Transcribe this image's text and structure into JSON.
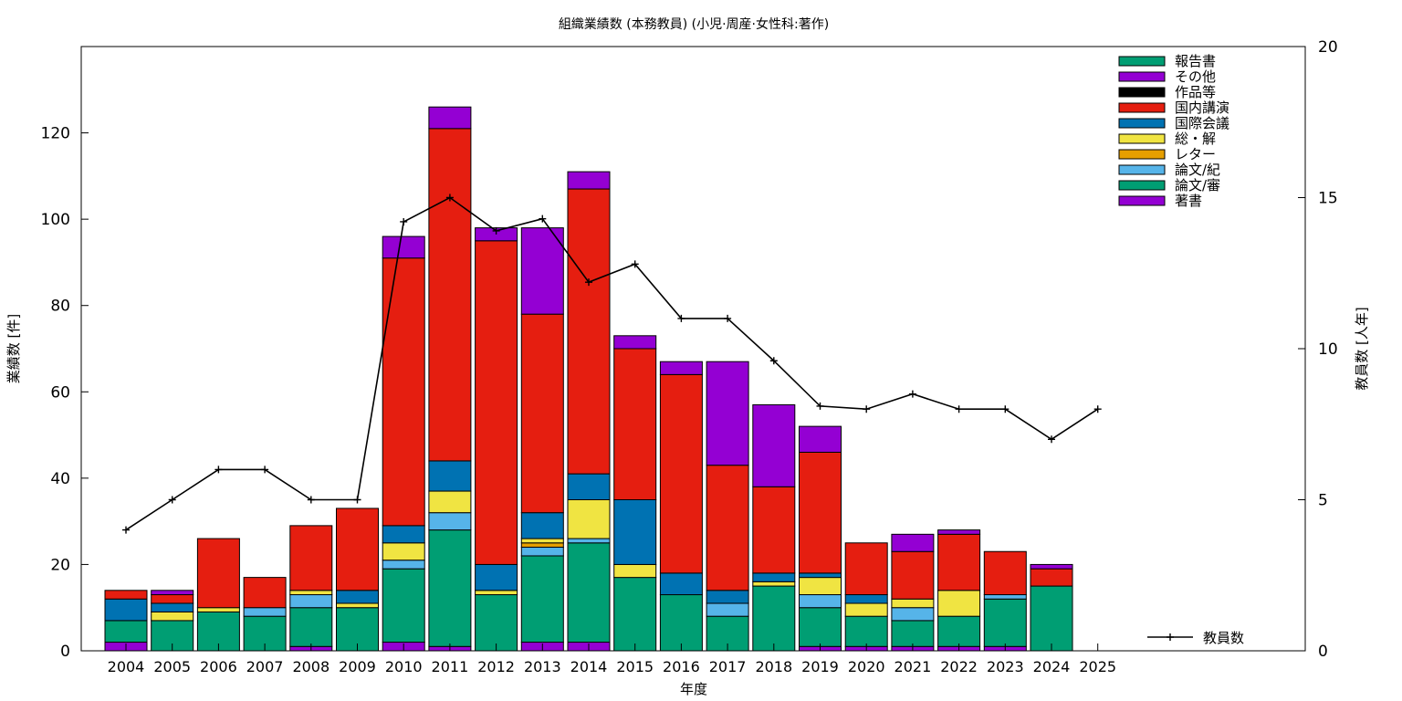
{
  "chart_data": {
    "type": "bar",
    "stacked": true,
    "title": "組織業績数 (本務教員) (小児·周産·女性科:著作)",
    "xlabel": "年度",
    "ylabel": "業績数 [件]",
    "y2label": "教員数 [人年]",
    "ylim": [
      0,
      140
    ],
    "y2lim": [
      0,
      20
    ],
    "yticks": [
      0,
      20,
      40,
      60,
      80,
      100,
      120
    ],
    "y2ticks": [
      0,
      5,
      10,
      15,
      20
    ],
    "grid": false,
    "legend_position": "top-right",
    "categories": [
      "2004",
      "2005",
      "2006",
      "2007",
      "2008",
      "2009",
      "2010",
      "2011",
      "2012",
      "2013",
      "2014",
      "2015",
      "2016",
      "2017",
      "2018",
      "2019",
      "2020",
      "2021",
      "2022",
      "2023",
      "2024",
      "2025"
    ],
    "series": [
      {
        "name": "著書",
        "color": "#9400d3",
        "values": [
          2,
          0,
          0,
          0,
          1,
          0,
          2,
          1,
          0,
          2,
          2,
          0,
          0,
          0,
          0,
          1,
          1,
          1,
          1,
          1,
          0,
          0
        ]
      },
      {
        "name": "論文/審",
        "color": "#009e73",
        "values": [
          5,
          7,
          9,
          8,
          9,
          10,
          17,
          27,
          13,
          20,
          23,
          17,
          13,
          8,
          15,
          9,
          7,
          6,
          7,
          11,
          15,
          0
        ]
      },
      {
        "name": "論文/紀",
        "color": "#56b4e9",
        "values": [
          0,
          0,
          0,
          2,
          3,
          0,
          2,
          4,
          0,
          2,
          1,
          0,
          0,
          3,
          0,
          3,
          0,
          3,
          0,
          1,
          0,
          0
        ]
      },
      {
        "name": "レター",
        "color": "#e69f00",
        "values": [
          0,
          0,
          0,
          0,
          0,
          0,
          0,
          0,
          0,
          1,
          0,
          0,
          0,
          0,
          0,
          0,
          0,
          0,
          0,
          0,
          0,
          0
        ]
      },
      {
        "name": "総・解",
        "color": "#f0e442",
        "values": [
          0,
          2,
          1,
          0,
          1,
          1,
          4,
          5,
          1,
          1,
          9,
          3,
          0,
          0,
          1,
          4,
          3,
          2,
          6,
          0,
          0,
          0
        ]
      },
      {
        "name": "国際会議",
        "color": "#0072b2",
        "values": [
          5,
          2,
          0,
          0,
          0,
          3,
          4,
          7,
          6,
          6,
          6,
          15,
          5,
          3,
          2,
          1,
          2,
          0,
          0,
          0,
          0,
          0
        ]
      },
      {
        "name": "国内講演",
        "color": "#e51e10",
        "values": [
          2,
          2,
          16,
          7,
          15,
          19,
          62,
          77,
          75,
          46,
          66,
          35,
          46,
          29,
          20,
          28,
          12,
          11,
          13,
          10,
          4,
          0
        ]
      },
      {
        "name": "作品等",
        "color": "#000000",
        "values": [
          0,
          0,
          0,
          0,
          0,
          0,
          0,
          0,
          0,
          0,
          0,
          0,
          0,
          0,
          0,
          0,
          0,
          0,
          0,
          0,
          0,
          0
        ]
      },
      {
        "name": "その他",
        "color": "#9400d3",
        "values": [
          0,
          1,
          0,
          0,
          0,
          0,
          5,
          5,
          3,
          20,
          4,
          3,
          3,
          24,
          19,
          6,
          0,
          4,
          1,
          0,
          1,
          0
        ]
      },
      {
        "name": "報告書",
        "color": "#009e73",
        "values": [
          0,
          0,
          0,
          0,
          0,
          0,
          0,
          0,
          0,
          0,
          0,
          0,
          0,
          0,
          0,
          0,
          0,
          0,
          0,
          0,
          0,
          0
        ]
      }
    ],
    "line_series": {
      "name": "教員数",
      "color": "#000000",
      "axis": "y2",
      "values": [
        4,
        5,
        6,
        6,
        5,
        5,
        14.2,
        15,
        13.9,
        14.3,
        12.2,
        12.8,
        11,
        11,
        9.6,
        8.1,
        8,
        8.5,
        8,
        8,
        7,
        8
      ]
    }
  }
}
